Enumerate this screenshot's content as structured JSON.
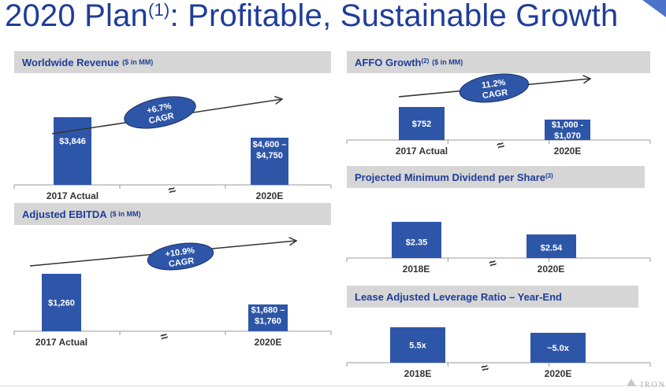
{
  "title": {
    "main": "2020 Plan",
    "sup": "(1)",
    "rest": ": Profitable, Sustainable Growth"
  },
  "logo": {
    "text": "IRON"
  },
  "colors": {
    "bar": "#2e56a8",
    "header_bg": "#d6d6d6",
    "title": "#1f3d99",
    "ellipse": "#2e56a8"
  },
  "chart_data": [
    {
      "id": "revenue",
      "type": "bar",
      "title": "Worldwide Revenue",
      "title_sup": "",
      "unit_note": "($ in MM)",
      "categories": [
        "2017 Actual",
        "2020E"
      ],
      "values": [
        3846,
        4675
      ],
      "value_labels": [
        "$3,846",
        "$4,600 –\n$4,750"
      ],
      "axis_break": "≈",
      "cagr": {
        "line1": "+6.7%",
        "line2": "CAGR"
      }
    },
    {
      "id": "ebitda",
      "type": "bar",
      "title": "Adjusted EBITDA",
      "title_sup": "",
      "unit_note": "($ in MM)",
      "categories": [
        "2017 Actual",
        "2020E"
      ],
      "values": [
        1260,
        1720
      ],
      "value_labels": [
        "$1,260",
        "$1,680 –\n$1,760"
      ],
      "axis_break": "≈",
      "cagr": {
        "line1": "+10.9%",
        "line2": "CAGR"
      }
    },
    {
      "id": "affo",
      "type": "bar",
      "title": "AFFO Growth",
      "title_sup": "(2)",
      "unit_note": "($ in MM)",
      "categories": [
        "2017 Actual",
        "2020E"
      ],
      "values": [
        752,
        1035
      ],
      "value_labels": [
        "$752",
        "$1,000 -\n$1,070"
      ],
      "axis_break": "≈",
      "cagr": {
        "line1": "11.2%",
        "line2": "CAGR"
      }
    },
    {
      "id": "dividend",
      "type": "bar",
      "title": "Projected Minimum Dividend per Share",
      "title_sup": "(3)",
      "unit_note": "",
      "categories": [
        "2018E",
        "2020E"
      ],
      "values": [
        2.35,
        2.54
      ],
      "value_labels": [
        "$2.35",
        "$2.54"
      ],
      "axis_break": "≈"
    },
    {
      "id": "leverage",
      "type": "bar",
      "title": "Lease Adjusted Leverage Ratio – Year-End",
      "title_sup": "",
      "unit_note": "",
      "categories": [
        "2018E",
        "2020E"
      ],
      "values": [
        5.5,
        5.0
      ],
      "value_labels": [
        "5.5x",
        "~5.0x"
      ],
      "axis_break": "≈"
    }
  ]
}
